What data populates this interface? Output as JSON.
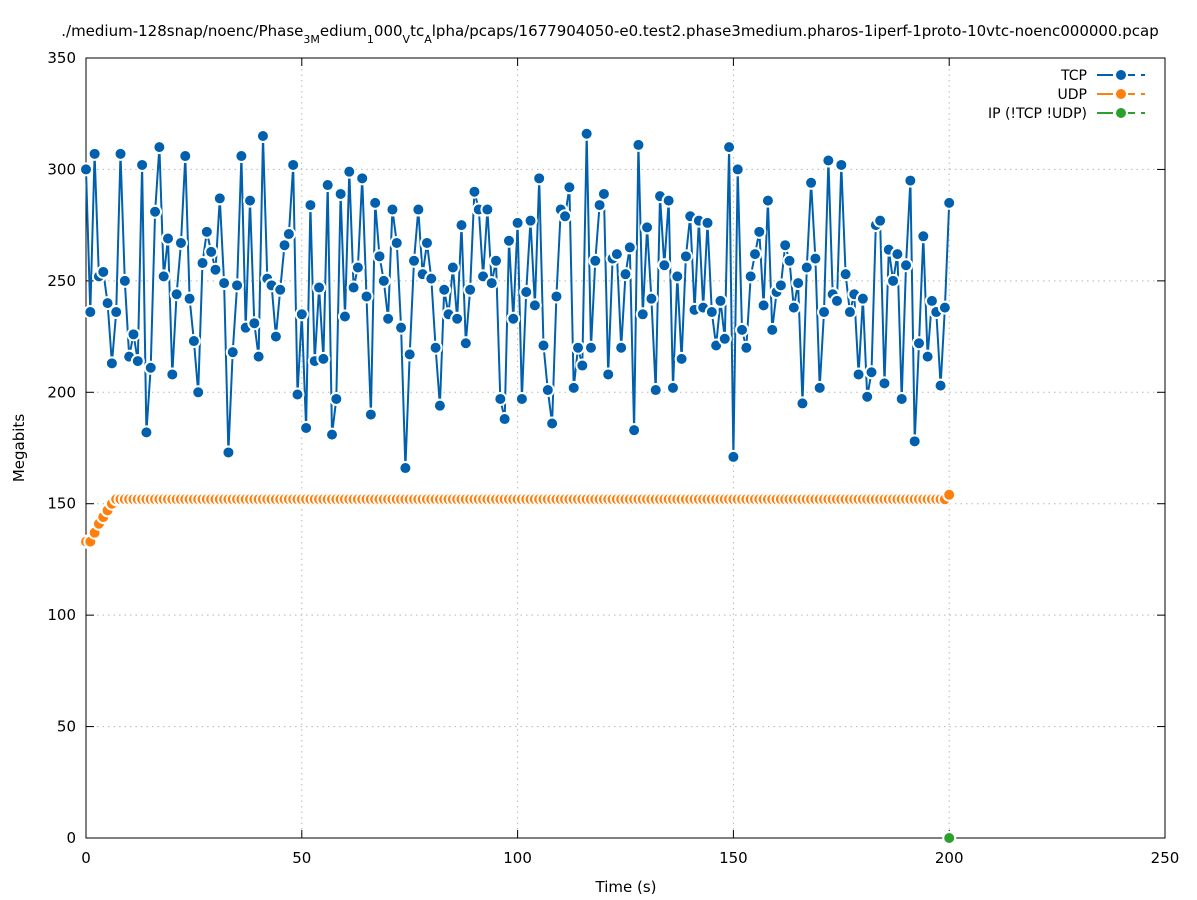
{
  "chart_data": {
    "type": "line",
    "title": "./medium-128snap/noenc/Phase_3Medium_1000_Vtc_Alpha/pcaps/1677904050-e0.test2.phase3medium.pharos-1iperf-1proto-10vtc-noenc000000.pcap",
    "title_parts": [
      {
        "text": "./medium-128snap/noenc/Phase",
        "sub": false
      },
      {
        "text": "3M",
        "sub": true
      },
      {
        "text": "edium",
        "sub": false
      },
      {
        "text": "1",
        "sub": true
      },
      {
        "text": "000",
        "sub": false
      },
      {
        "text": "V",
        "sub": true
      },
      {
        "text": "tc",
        "sub": false
      },
      {
        "text": "A",
        "sub": true
      },
      {
        "text": "lpha/pcaps/1677904050-e0.test2.phase3medium.pharos-1iperf-1proto-10vtc-noenc000000.pcap",
        "sub": false
      }
    ],
    "xlabel": "Time (s)",
    "ylabel": "Megabits",
    "xlim": [
      0,
      250
    ],
    "ylim": [
      0,
      350
    ],
    "xticks": [
      0,
      50,
      100,
      150,
      200,
      250
    ],
    "yticks": [
      0,
      50,
      100,
      150,
      200,
      250,
      300,
      350
    ],
    "grid": true,
    "legend_position": "top-right",
    "series": [
      {
        "name": "TCP",
        "color": "#0060ad",
        "x": [
          0,
          1,
          2,
          3,
          4,
          5,
          6,
          7,
          8,
          9,
          10,
          11,
          12,
          13,
          14,
          15,
          16,
          17,
          18,
          19,
          20,
          21,
          22,
          23,
          24,
          25,
          26,
          27,
          28,
          29,
          30,
          31,
          32,
          33,
          34,
          35,
          36,
          37,
          38,
          39,
          40,
          41,
          42,
          43,
          44,
          45,
          46,
          47,
          48,
          49,
          50,
          51,
          52,
          53,
          54,
          55,
          56,
          57,
          58,
          59,
          60,
          61,
          62,
          63,
          64,
          65,
          66,
          67,
          68,
          69,
          70,
          71,
          72,
          73,
          74,
          75,
          76,
          77,
          78,
          79,
          80,
          81,
          82,
          83,
          84,
          85,
          86,
          87,
          88,
          89,
          90,
          91,
          92,
          93,
          94,
          95,
          96,
          97,
          98,
          99,
          100,
          101,
          102,
          103,
          104,
          105,
          106,
          107,
          108,
          109,
          110,
          111,
          112,
          113,
          114,
          115,
          116,
          117,
          118,
          119,
          120,
          121,
          122,
          123,
          124,
          125,
          126,
          127,
          128,
          129,
          130,
          131,
          132,
          133,
          134,
          135,
          136,
          137,
          138,
          139,
          140,
          141,
          142,
          143,
          144,
          145,
          146,
          147,
          148,
          149,
          150,
          151,
          152,
          153,
          154,
          155,
          156,
          157,
          158,
          159,
          160,
          161,
          162,
          163,
          164,
          165,
          166,
          167,
          168,
          169,
          170,
          171,
          172,
          173,
          174,
          175,
          176,
          177,
          178,
          179,
          180,
          181,
          182,
          183,
          184,
          185,
          186,
          187,
          188,
          189,
          190,
          191,
          192,
          193,
          194,
          195,
          196,
          197,
          198,
          199,
          200
        ],
        "values": [
          300,
          236,
          307,
          252,
          254,
          240,
          213,
          236,
          307,
          250,
          216,
          226,
          214,
          302,
          182,
          211,
          281,
          310,
          252,
          269,
          208,
          244,
          267,
          306,
          242,
          223,
          200,
          258,
          272,
          263,
          255,
          287,
          249,
          173,
          218,
          248,
          306,
          229,
          286,
          231,
          216,
          315,
          251,
          248,
          225,
          246,
          266,
          271,
          302,
          199,
          235,
          184,
          284,
          214,
          247,
          215,
          293,
          181,
          197,
          289,
          234,
          299,
          247,
          256,
          296,
          243,
          190,
          285,
          261,
          250,
          233,
          282,
          267,
          229,
          166,
          217,
          259,
          282,
          253,
          267,
          251,
          220,
          194,
          246,
          235,
          256,
          233,
          275,
          222,
          246,
          290,
          282,
          252,
          282,
          249,
          259,
          197,
          188,
          268,
          233,
          276,
          197,
          245,
          277,
          239,
          296,
          221,
          201,
          186,
          243,
          282,
          279,
          292,
          202,
          220,
          212,
          316,
          220,
          259,
          284,
          289,
          208,
          260,
          262,
          220,
          253,
          265,
          183,
          311,
          235,
          274,
          242,
          201,
          288,
          257,
          286,
          202,
          252,
          215,
          261,
          279,
          237,
          277,
          238,
          276,
          236,
          221,
          241,
          224,
          310,
          171,
          300,
          228,
          220,
          252,
          262,
          272,
          239,
          286,
          228,
          245,
          248,
          266,
          259,
          238,
          249,
          195,
          256,
          294,
          260,
          202,
          236,
          304,
          244,
          241,
          302,
          253,
          236,
          244,
          208,
          242,
          198,
          209,
          275,
          277,
          204,
          264,
          250,
          262,
          197,
          257,
          295,
          178,
          222,
          270,
          216,
          241,
          236,
          203,
          238,
          285
        ]
      },
      {
        "name": "UDP",
        "color": "#ff7f0e",
        "x": [
          0,
          1,
          2,
          3,
          4,
          5,
          6,
          7,
          8,
          9,
          10,
          11,
          12,
          13,
          14,
          15,
          16,
          17,
          18,
          19,
          20,
          21,
          22,
          23,
          24,
          25,
          26,
          27,
          28,
          29,
          30,
          31,
          32,
          33,
          34,
          35,
          36,
          37,
          38,
          39,
          40,
          41,
          42,
          43,
          44,
          45,
          46,
          47,
          48,
          49,
          50,
          51,
          52,
          53,
          54,
          55,
          56,
          57,
          58,
          59,
          60,
          61,
          62,
          63,
          64,
          65,
          66,
          67,
          68,
          69,
          70,
          71,
          72,
          73,
          74,
          75,
          76,
          77,
          78,
          79,
          80,
          81,
          82,
          83,
          84,
          85,
          86,
          87,
          88,
          89,
          90,
          91,
          92,
          93,
          94,
          95,
          96,
          97,
          98,
          99,
          100,
          101,
          102,
          103,
          104,
          105,
          106,
          107,
          108,
          109,
          110,
          111,
          112,
          113,
          114,
          115,
          116,
          117,
          118,
          119,
          120,
          121,
          122,
          123,
          124,
          125,
          126,
          127,
          128,
          129,
          130,
          131,
          132,
          133,
          134,
          135,
          136,
          137,
          138,
          139,
          140,
          141,
          142,
          143,
          144,
          145,
          146,
          147,
          148,
          149,
          150,
          151,
          152,
          153,
          154,
          155,
          156,
          157,
          158,
          159,
          160,
          161,
          162,
          163,
          164,
          165,
          166,
          167,
          168,
          169,
          170,
          171,
          172,
          173,
          174,
          175,
          176,
          177,
          178,
          179,
          180,
          181,
          182,
          183,
          184,
          185,
          186,
          187,
          188,
          189,
          190,
          191,
          192,
          193,
          194,
          195,
          196,
          197,
          198,
          199,
          200
        ],
        "values": [
          133,
          133,
          137,
          141,
          144,
          147,
          150,
          152,
          152,
          152,
          152,
          152,
          152,
          152,
          152,
          152,
          152,
          152,
          152,
          152,
          152,
          152,
          152,
          152,
          152,
          152,
          152,
          152,
          152,
          152,
          152,
          152,
          152,
          152,
          152,
          152,
          152,
          152,
          152,
          152,
          152,
          152,
          152,
          152,
          152,
          152,
          152,
          152,
          152,
          152,
          152,
          152,
          152,
          152,
          152,
          152,
          152,
          152,
          152,
          152,
          152,
          152,
          152,
          152,
          152,
          152,
          152,
          152,
          152,
          152,
          152,
          152,
          152,
          152,
          152,
          152,
          152,
          152,
          152,
          152,
          152,
          152,
          152,
          152,
          152,
          152,
          152,
          152,
          152,
          152,
          152,
          152,
          152,
          152,
          152,
          152,
          152,
          152,
          152,
          152,
          152,
          152,
          152,
          152,
          152,
          152,
          152,
          152,
          152,
          152,
          152,
          152,
          152,
          152,
          152,
          152,
          152,
          152,
          152,
          152,
          152,
          152,
          152,
          152,
          152,
          152,
          152,
          152,
          152,
          152,
          152,
          152,
          152,
          152,
          152,
          152,
          152,
          152,
          152,
          152,
          152,
          152,
          152,
          152,
          152,
          152,
          152,
          152,
          152,
          152,
          152,
          152,
          152,
          152,
          152,
          152,
          152,
          152,
          152,
          152,
          152,
          152,
          152,
          152,
          152,
          152,
          152,
          152,
          152,
          152,
          152,
          152,
          152,
          152,
          152,
          152,
          152,
          152,
          152,
          152,
          152,
          152,
          152,
          152,
          152,
          152,
          152,
          152,
          152,
          152,
          152,
          152,
          152,
          152,
          152,
          152,
          152,
          152,
          152,
          152,
          154
        ]
      },
      {
        "name": "IP (!TCP  !UDP)",
        "color": "#2ca02c",
        "x": [
          200
        ],
        "values": [
          0
        ]
      }
    ]
  }
}
